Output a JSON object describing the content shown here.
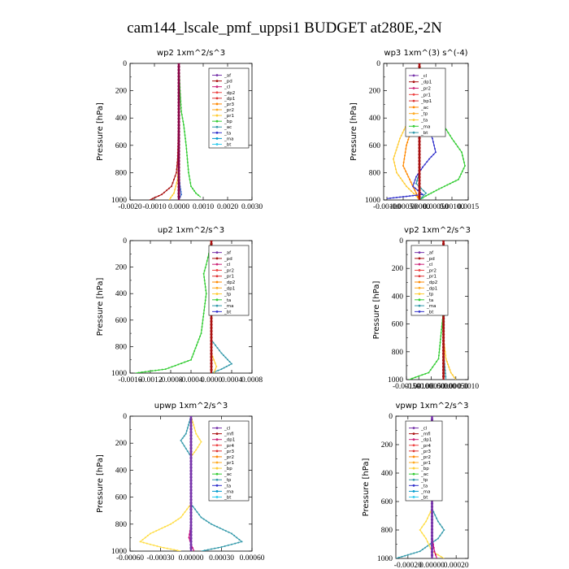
{
  "title": "cam144_lscale_pmf_uppsi1  BUDGET at280E,-2N",
  "chart_data": [
    {
      "type": "line",
      "title": "wp2   1xm^2/s^3",
      "ylabel": "Pressure [hPa]",
      "xlim": [
        -0.002,
        0.003
      ],
      "ylim": [
        1000,
        0
      ],
      "xticks": [
        -0.002,
        -0.001,
        0.0,
        0.001,
        0.002,
        0.003
      ],
      "xtick_labels": [
        "-0.0020",
        "-0.0010",
        "0.0000",
        "0.0010",
        "0.0020",
        "0.0030"
      ],
      "yticks": [
        0,
        200,
        400,
        600,
        800,
        1000
      ],
      "ytick_labels": [
        "0",
        "200",
        "400",
        "600",
        "800",
        "1000"
      ],
      "legend_loc": "upper-right",
      "legend": [
        "_af",
        "_pd",
        "_cl",
        "_dp2",
        "_dp1",
        "_pr3",
        "_pr2",
        "_pr1",
        "_bp",
        "_ac",
        "_ta",
        "_ma",
        "_bt"
      ],
      "series": [
        {
          "name": "_ac",
          "color": "#33cc33",
          "x": [
            0.0,
            5e-05,
            0.0001,
            0.0002,
            0.0003,
            0.0004,
            0.0005,
            0.0007,
            0.0009
          ],
          "y": [
            0,
            200,
            350,
            450,
            600,
            800,
            900,
            950,
            980
          ]
        },
        {
          "name": "_dp1",
          "color": "#aa1111",
          "x": [
            0.0,
            0.0,
            -5e-05,
            -0.0001,
            -0.0003,
            -0.0007,
            -0.0012
          ],
          "y": [
            0,
            400,
            700,
            800,
            900,
            960,
            1000
          ]
        },
        {
          "name": "_pr1",
          "color": "#ffcc33",
          "x": [
            0.0,
            0.0,
            -5e-05,
            -0.0002,
            -0.0004
          ],
          "y": [
            0,
            700,
            850,
            950,
            1000
          ]
        },
        {
          "name": "_bp",
          "color": "#3366cc",
          "x": [
            0.0,
            0.0,
            5e-05,
            0.0001,
            0.0
          ],
          "y": [
            0,
            800,
            900,
            960,
            1000
          ]
        },
        {
          "name": "_pd",
          "color": "#880044",
          "x": [
            0.0,
            0.0
          ],
          "y": [
            0,
            1000
          ]
        }
      ]
    },
    {
      "type": "line",
      "title": "wp3   1xm^(3) s^(-4)",
      "ylabel": "Pressure [hPa]",
      "xlim": [
        -0.0011,
        0.0015
      ],
      "ylim": [
        1000,
        0
      ],
      "xticks": [
        -0.001,
        -0.0005,
        0.0,
        0.0005,
        0.001,
        0.0015
      ],
      "xtick_labels": [
        "-0.00100",
        "-0.00050",
        ".00000",
        "0.00050",
        "0.00100",
        "0.0015"
      ],
      "yticks": [
        0,
        200,
        400,
        600,
        800,
        1000
      ],
      "ytick_labels": [
        "0",
        "200",
        "400",
        "600",
        "800",
        "1000"
      ],
      "legend_loc": "upper-right",
      "legend": [
        "_cl",
        "_dp1",
        "_pr2",
        "_pr1",
        "_bp1",
        "_ac",
        "_tp",
        "_ta",
        "_ma",
        "_bt"
      ],
      "series": [
        {
          "name": "_ac",
          "color": "#33cc33",
          "x": [
            0.0,
            0.0001,
            0.0003,
            0.0006,
            0.001,
            0.0013,
            0.0014,
            0.0012,
            0.0006,
            0.0002,
            0.0
          ],
          "y": [
            0,
            150,
            250,
            400,
            550,
            650,
            750,
            850,
            920,
            970,
            1000
          ]
        },
        {
          "name": "_pr1",
          "color": "#ffcc33",
          "x": [
            0.0,
            -0.0001,
            -0.0003,
            -0.0006,
            -0.0008,
            -0.0007,
            -0.0004,
            -0.0001,
            0.0
          ],
          "y": [
            0,
            250,
            400,
            550,
            700,
            800,
            900,
            970,
            1000
          ]
        },
        {
          "name": "_pr2",
          "color": "#ff8800",
          "x": [
            0.0,
            -5e-05,
            -0.0002,
            -0.0004,
            -0.0005,
            -0.0003,
            -0.0001,
            0.0
          ],
          "y": [
            0,
            300,
            450,
            600,
            750,
            850,
            950,
            1000
          ]
        },
        {
          "name": "_bp1",
          "color": "#3333cc",
          "x": [
            0.0,
            5e-05,
            0.0002,
            0.0004,
            0.0005,
            0.0003,
            0.0001,
            -0.0001,
            -0.0002,
            0.0001,
            -0.001
          ],
          "y": [
            0,
            300,
            450,
            550,
            650,
            700,
            760,
            830,
            900,
            960,
            990
          ]
        },
        {
          "name": "_tp",
          "color": "#3399aa",
          "x": [
            0.0,
            0.0,
            -0.0001,
            0.0002,
            0.0
          ],
          "y": [
            0,
            800,
            880,
            950,
            1000
          ]
        },
        {
          "name": "_dp1",
          "color": "#aa1111",
          "x": [
            0.0,
            0.0
          ],
          "y": [
            0,
            1000
          ]
        }
      ]
    },
    {
      "type": "line",
      "title": "up2   1xm^2/s^3",
      "ylabel": "Pressure [hPa]",
      "xlim": [
        -0.0016,
        0.0008
      ],
      "ylim": [
        1000,
        0
      ],
      "xticks": [
        -0.0016,
        -0.0012,
        -0.0008,
        -0.0004,
        0.0,
        0.0004,
        0.0008
      ],
      "xtick_labels": [
        "-0.0016",
        "-0.0012",
        "-0.0008",
        "-0.0004",
        "0.0000",
        "0.0004",
        "0.0008"
      ],
      "yticks": [
        0,
        200,
        400,
        600,
        800,
        1000
      ],
      "ytick_labels": [
        "0",
        "200",
        "400",
        "600",
        "800",
        "1000"
      ],
      "legend_loc": "upper-right",
      "legend": [
        "_af",
        "_pd",
        "_cl",
        "_pr2",
        "_pr1",
        "_dp2",
        "_dp1",
        "_tp",
        "_ta",
        "_ma",
        "_bt"
      ],
      "series": [
        {
          "name": "_dp1",
          "color": "#33cc33",
          "x": [
            0.0,
            -5e-05,
            -0.0001,
            -0.00015,
            -0.0001,
            -0.0002,
            -0.0004,
            -0.0009,
            -0.0015
          ],
          "y": [
            0,
            100,
            180,
            250,
            400,
            700,
            900,
            970,
            1000
          ]
        },
        {
          "name": "_tp",
          "color": "#3399aa",
          "x": [
            0.0,
            5e-05,
            0.0001,
            0.0,
            0.0,
            0.0002,
            0.0004,
            0.0002,
            0.0
          ],
          "y": [
            0,
            120,
            180,
            250,
            750,
            850,
            930,
            970,
            1000
          ]
        },
        {
          "name": "_pr1",
          "color": "#ffcc33",
          "x": [
            0.0,
            0.0,
            0.0001,
            5e-05
          ],
          "y": [
            0,
            850,
            950,
            1000
          ]
        },
        {
          "name": "_pd",
          "color": "#aa1111",
          "x": [
            0.0,
            0.0
          ],
          "y": [
            0,
            1000
          ]
        }
      ]
    },
    {
      "type": "line",
      "title": "vp2   1xm^2/s^3",
      "ylabel": "Pressure [hPa]",
      "xlim": [
        -0.0015,
        0.001
      ],
      "ylim": [
        1000,
        0
      ],
      "xticks": [
        -0.0015,
        -0.001,
        -0.0005,
        0.0,
        0.0005,
        0.001
      ],
      "xtick_labels": [
        "-0.00150",
        "-0.00100",
        "-0.00050",
        "0.00000",
        "0.00050",
        "0.0010"
      ],
      "yticks": [
        0,
        200,
        400,
        600,
        800,
        1000
      ],
      "ytick_labels": [
        "0",
        "200",
        "400",
        "600",
        "800",
        "1000"
      ],
      "legend_loc": "upper-right",
      "legend": [
        "_af",
        "_pd",
        "_cl",
        "_pr2",
        "_pr1",
        "_dp2",
        "_dp1",
        "_tp",
        "_ta",
        "_ma",
        "_bt"
      ],
      "series": [
        {
          "name": "_dp1",
          "color": "#33cc33",
          "x": [
            0.0,
            -5e-05,
            -0.0001,
            -5e-05,
            0.0,
            -0.0002,
            -0.0006,
            -0.0014
          ],
          "y": [
            0,
            120,
            180,
            260,
            500,
            850,
            950,
            1000
          ]
        },
        {
          "name": "_pr1",
          "color": "#ffcc33",
          "x": [
            0.0,
            0.0,
            0.0001,
            0.0003,
            0.0005
          ],
          "y": [
            0,
            700,
            850,
            950,
            1000
          ]
        },
        {
          "name": "_tp",
          "color": "#3399aa",
          "x": [
            0.0,
            5e-05,
            0.0001,
            5e-05,
            0.0,
            0.0001
          ],
          "y": [
            0,
            120,
            180,
            260,
            800,
            1000
          ]
        },
        {
          "name": "_pd",
          "color": "#aa1111",
          "x": [
            0.0,
            0.0
          ],
          "y": [
            0,
            1000
          ]
        }
      ]
    },
    {
      "type": "line",
      "title": "upwp   1xm^2/s^3",
      "ylabel": "Pressure [hPa]",
      "xlim": [
        -0.0006,
        0.0006
      ],
      "ylim": [
        1000,
        0
      ],
      "xticks": [
        -0.0006,
        -0.0003,
        0.0,
        0.0003,
        0.0006
      ],
      "xtick_labels": [
        "-0.00060",
        "-0.00030",
        "0.00000",
        "0.00030",
        "0.00060"
      ],
      "yticks": [
        0,
        200,
        400,
        600,
        800,
        1000
      ],
      "ytick_labels": [
        "0",
        "200",
        "400",
        "600",
        "800",
        "1000"
      ],
      "legend_loc": "upper-right",
      "legend": [
        "_cl",
        "_mfl",
        "_dp1",
        "_pr4",
        "_pr3",
        "_pr2",
        "_pr1",
        "_bp",
        "_ac",
        "_tp",
        "_ta",
        "_ma",
        "_bt"
      ],
      "series": [
        {
          "name": "_tp",
          "color": "#3399aa",
          "x": [
            0.0,
            -5e-05,
            -0.0001,
            -5e-05,
            0.0,
            0.0,
            0.0001,
            0.0002,
            0.0004,
            0.0005,
            0.0003,
            0.0001
          ],
          "y": [
            0,
            130,
            180,
            240,
            300,
            650,
            750,
            800,
            870,
            930,
            970,
            1000
          ]
        },
        {
          "name": "_pr1",
          "color": "#ffdd44",
          "x": [
            0.0,
            5e-05,
            0.0001,
            5e-05,
            0.0,
            0.0,
            -0.0001,
            -0.0002,
            -0.0004,
            -0.0005,
            -0.0003,
            -0.0001
          ],
          "y": [
            0,
            130,
            190,
            250,
            300,
            650,
            750,
            800,
            870,
            930,
            970,
            1000
          ]
        },
        {
          "name": "_mfl",
          "color": "#cc0077",
          "x": [
            0.0,
            0.0,
            -2e-05,
            0.0,
            3e-05
          ],
          "y": [
            0,
            800,
            900,
            950,
            1000
          ]
        },
        {
          "name": "_cl",
          "color": "#7733aa",
          "x": [
            0.0,
            0.0
          ],
          "y": [
            0,
            1000
          ]
        }
      ]
    },
    {
      "type": "line",
      "title": "vpwp   1xm^2/s^3",
      "ylabel": "Pressure [hPa]",
      "xlim": [
        -0.0003,
        0.0003
      ],
      "ylim": [
        1000,
        0
      ],
      "xticks": [
        -0.0002,
        0.0,
        0.0002
      ],
      "xtick_labels": [
        "-0.00020",
        "0.00000",
        "0.00020"
      ],
      "yticks": [
        0,
        200,
        400,
        600,
        800,
        1000
      ],
      "ytick_labels": [
        "0",
        "200",
        "400",
        "600",
        "800",
        "1000"
      ],
      "legend_loc": "upper-right",
      "legend": [
        "_cl",
        "_mfl",
        "_dp1",
        "_pr4",
        "_pr3",
        "_pr2",
        "_pr1",
        "_bp",
        "_ac",
        "_tp",
        "_ta",
        "_ma",
        "_bt"
      ],
      "series": [
        {
          "name": "_tp",
          "color": "#3399aa",
          "x": [
            0.0,
            -2e-05,
            -5e-05,
            -2e-05,
            0.0,
            0.0,
            5e-05,
            0.0001,
            5e-05,
            -0.0001,
            -0.0003
          ],
          "y": [
            0,
            130,
            200,
            260,
            320,
            650,
            740,
            800,
            860,
            950,
            1000
          ]
        },
        {
          "name": "_pr1",
          "color": "#ffdd44",
          "x": [
            0.0,
            2e-05,
            5e-05,
            2e-05,
            0.0,
            0.0,
            -5e-05,
            -0.0001,
            -5e-05,
            0.0,
            0.0001
          ],
          "y": [
            0,
            130,
            200,
            260,
            320,
            650,
            740,
            800,
            860,
            950,
            1000
          ]
        },
        {
          "name": "_mfl",
          "color": "#cc0077",
          "x": [
            0.0,
            0.0,
            2e-05,
            4e-05
          ],
          "y": [
            0,
            850,
            950,
            1000
          ]
        },
        {
          "name": "_cl",
          "color": "#7733aa",
          "x": [
            0.0,
            0.0
          ],
          "y": [
            0,
            1000
          ]
        }
      ]
    }
  ]
}
